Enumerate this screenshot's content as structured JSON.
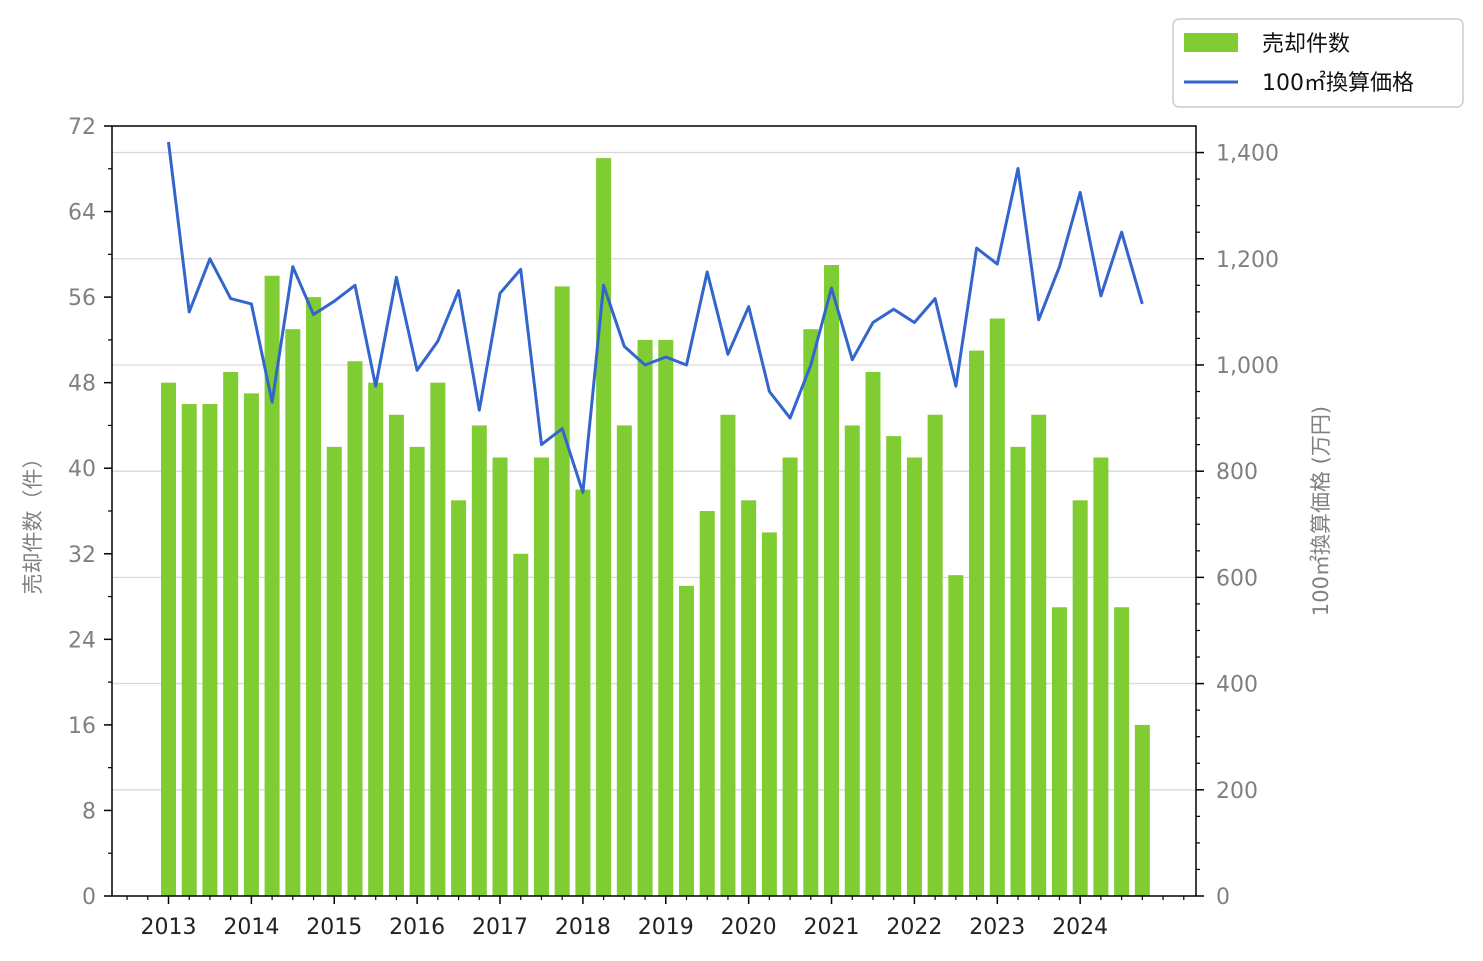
{
  "chart_data": {
    "type": "bar+line",
    "title": "",
    "x_tick_labels": [
      "2013",
      "2014",
      "2015",
      "2016",
      "2017",
      "2018",
      "2019",
      "2020",
      "2021",
      "2022",
      "2023",
      "2024"
    ],
    "left_axis": {
      "label": "売却件数（件）",
      "ylim": [
        0,
        72
      ],
      "ticks": [
        0,
        8,
        16,
        24,
        32,
        40,
        48,
        56,
        64,
        72
      ]
    },
    "right_axis": {
      "label": "100㎡換算価格 (万円)",
      "ylim": [
        0,
        1450
      ],
      "ticks": [
        0,
        200,
        400,
        600,
        800,
        1000,
        1200,
        1400
      ],
      "tick_labels": [
        "0",
        "200",
        "400",
        "600",
        "800",
        "1,000",
        "1,200",
        "1,400"
      ]
    },
    "grid": "horizontal (right axis)",
    "legend_position": "top-right",
    "series": [
      {
        "name": "売却件数",
        "type": "bar",
        "axis": "left",
        "color": "#7FCC33",
        "start_year": 2013,
        "points_per_year": 4,
        "values": [
          48,
          46,
          46,
          49,
          47,
          58,
          53,
          56,
          42,
          50,
          48,
          45,
          42,
          48,
          37,
          44,
          41,
          32,
          41,
          57,
          38,
          69,
          44,
          52,
          52,
          29,
          36,
          45,
          37,
          34,
          41,
          53,
          59,
          44,
          49,
          43,
          41,
          45,
          30,
          51,
          54,
          42,
          45,
          27,
          37,
          41,
          27,
          16
        ]
      },
      {
        "name": "100㎡換算価格",
        "type": "line",
        "axis": "right",
        "color": "#3366CC",
        "start_year": 2013,
        "points_per_year": 4,
        "values": [
          1420,
          1100,
          1200,
          1125,
          1115,
          930,
          1185,
          1095,
          1120,
          1150,
          960,
          1165,
          990,
          1045,
          1140,
          915,
          1135,
          1180,
          850,
          880,
          760,
          1150,
          1035,
          1000,
          1015,
          1000,
          1175,
          1020,
          1110,
          950,
          900,
          1000,
          1145,
          1010,
          1080,
          1105,
          1080,
          1125,
          960,
          1220,
          1190,
          1370,
          1085,
          1185,
          1325,
          1130,
          1250,
          1115
        ]
      }
    ]
  }
}
